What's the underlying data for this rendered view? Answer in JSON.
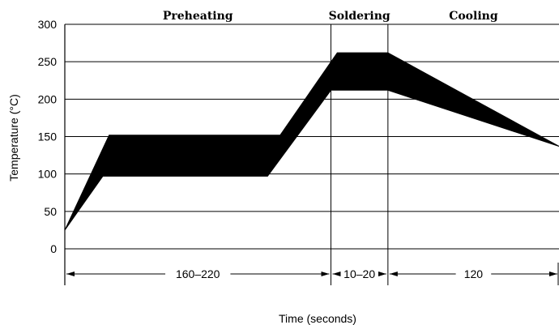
{
  "chart_data": {
    "type": "area",
    "title": "",
    "xlabel": "Time (seconds)",
    "ylabel": "Temperature (°C)",
    "ylim": [
      0,
      300
    ],
    "yticks": [
      0,
      50,
      100,
      150,
      200,
      250,
      300
    ],
    "grid": true,
    "phases": [
      {
        "name": "Preheating",
        "duration": "160–220"
      },
      {
        "name": "Soldering",
        "duration": "10–20"
      },
      {
        "name": "Cooling",
        "duration": "120"
      }
    ],
    "band": {
      "upper": [
        {
          "t": 0,
          "temp": 25
        },
        {
          "t": 35,
          "temp": 152
        },
        {
          "t": 170,
          "temp": 152
        },
        {
          "t": 215,
          "temp": 262
        },
        {
          "t": 255,
          "temp": 262
        },
        {
          "t": 390,
          "temp": 137
        }
      ],
      "lower": [
        {
          "t": 0,
          "temp": 25
        },
        {
          "t": 30,
          "temp": 97
        },
        {
          "t": 160,
          "temp": 97
        },
        {
          "t": 210,
          "temp": 212
        },
        {
          "t": 255,
          "temp": 212
        },
        {
          "t": 390,
          "temp": 137
        }
      ]
    },
    "phase_boundaries": [
      210,
      255
    ],
    "xlim": [
      0,
      390
    ]
  }
}
